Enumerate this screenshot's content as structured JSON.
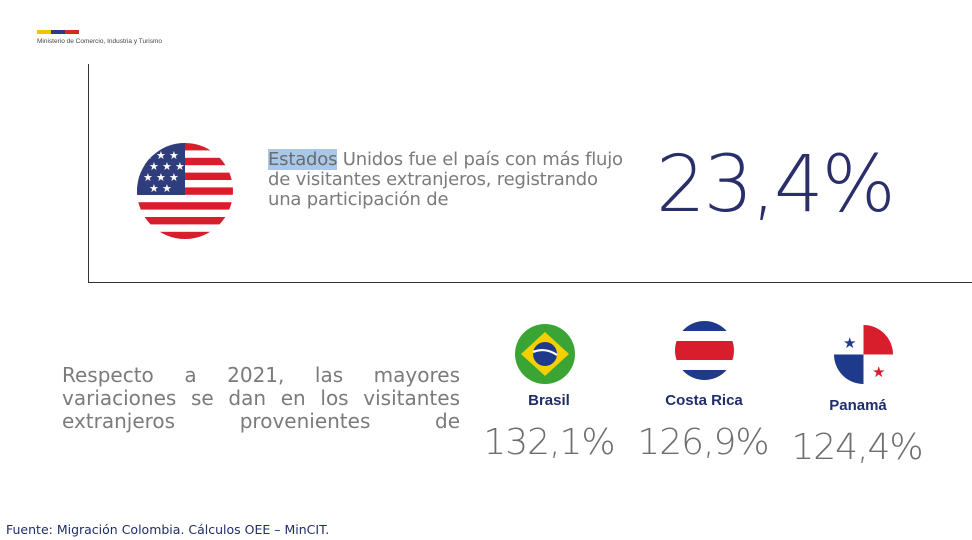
{
  "header": {
    "ministry": "Ministerio de Comercio, Industria y Turismo",
    "logo_colors": [
      "#f4c300",
      "#2a3b8f",
      "#d52b1e"
    ]
  },
  "highlight": {
    "text_highlighted": "Estados",
    "text_rest": " Unidos fue el país con más flujo de visitantes extranjeros, registrando una participación de",
    "percentage": "23,4%",
    "flag_icon": "usa-flag-icon"
  },
  "variations": {
    "intro": "Respecto a 2021, las mayores variaciones se dan en los visitantes extranjeros provenientes de",
    "countries": [
      {
        "name": "Brasil",
        "value": "132,1%",
        "flag_icon": "brazil-flag-icon"
      },
      {
        "name": "Costa Rica",
        "value": "126,9%",
        "flag_icon": "costa-rica-flag-icon"
      },
      {
        "name": "Panamá",
        "value": "124,4%",
        "flag_icon": "panama-flag-icon"
      }
    ]
  },
  "footer": {
    "source": "Fuente: Migración Colombia. Cálculos OEE – MinCIT."
  },
  "colors": {
    "accent_navy": "#1f2d6b",
    "percent_navy": "#2a2e6a",
    "body_gray": "#7b7b7b",
    "highlight_blue": "#a9c7e8"
  }
}
